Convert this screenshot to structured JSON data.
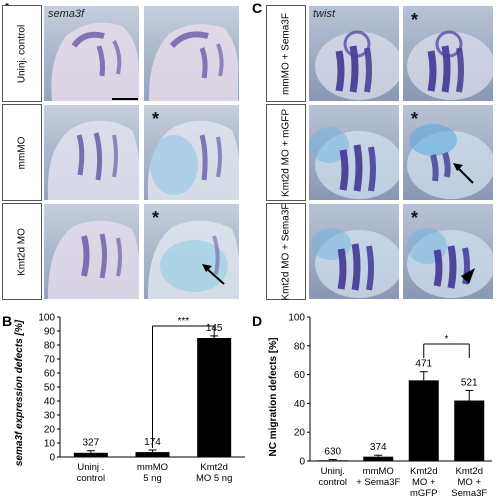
{
  "panels": {
    "A": {
      "letter": "A",
      "gene": "sema3f",
      "row_labels": [
        "Uninj. control",
        "mmMO",
        "Kmt2d MO"
      ]
    },
    "C": {
      "letter": "C",
      "gene": "twist",
      "row_labels": [
        "mmMO + Sema3F",
        "Kmt2d MO + mGFP",
        "Kmt2d MO + Sema3F"
      ]
    },
    "B": {
      "letter": "B"
    },
    "D": {
      "letter": "D"
    }
  },
  "markers": {
    "asterisk": "*"
  },
  "colors": {
    "stain": "#4b3aa0",
    "injection": "#3a9ad8",
    "bar": "#000000"
  },
  "chart_data": [
    {
      "type": "bar",
      "panel": "B",
      "ylabel": "sema3f expression defects [%]",
      "ylim": [
        0,
        100
      ],
      "yticks": [
        0,
        10,
        20,
        30,
        40,
        50,
        60,
        70,
        80,
        90,
        100
      ],
      "categories": [
        [
          "Uninj .",
          "control"
        ],
        [
          "mmMO",
          "5 ng"
        ],
        [
          "Kmt2d",
          "MO 5 ng"
        ]
      ],
      "values": [
        3,
        3.5,
        85
      ],
      "errors": [
        1.5,
        1.5,
        1.5
      ],
      "n_labels": [
        "327",
        "174",
        "145"
      ],
      "significance": [
        {
          "from": 1,
          "to": 2,
          "label": "***"
        }
      ]
    },
    {
      "type": "bar",
      "panel": "D",
      "ylabel": "NC migration defects [%]",
      "ylim": [
        0,
        100
      ],
      "yticks": [
        0,
        20,
        40,
        60,
        80,
        100
      ],
      "categories": [
        [
          "Uninj.",
          "control"
        ],
        [
          "mmMO",
          "+ Sema3F"
        ],
        [
          "Kmt2d",
          "MO +",
          "mGFP"
        ],
        [
          "Kmt2d",
          "MO +",
          "Sema3F"
        ]
      ],
      "values": [
        0.5,
        3,
        56,
        42
      ],
      "errors": [
        0.5,
        1,
        6,
        7
      ],
      "n_labels": [
        "630",
        "374",
        "471",
        "521"
      ],
      "significance": [
        {
          "from": 2,
          "to": 3,
          "label": "*"
        }
      ]
    }
  ]
}
